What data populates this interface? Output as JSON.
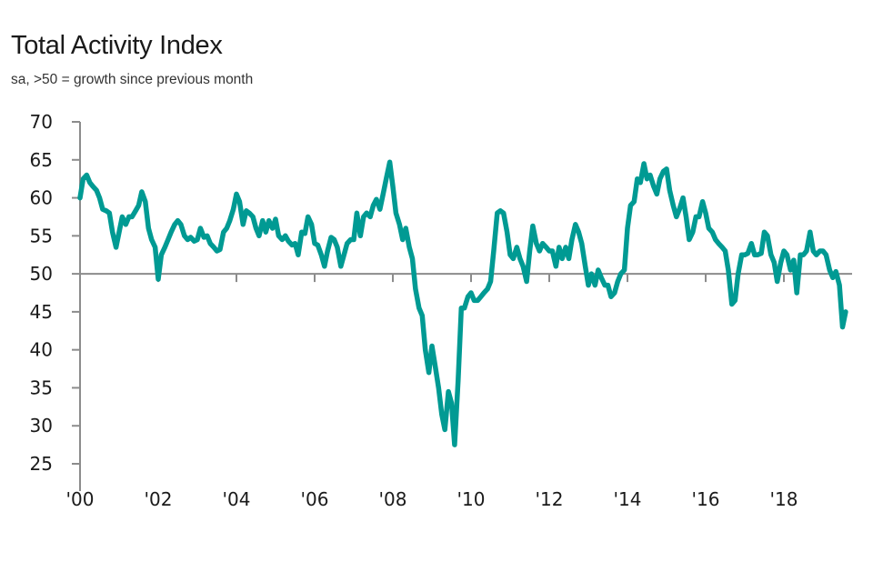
{
  "chart_data": {
    "type": "line",
    "title": "Total Activity Index",
    "subtitle": "sa, >50 = growth since previous month",
    "xlabel": "",
    "ylabel": "",
    "ylim": [
      25,
      70
    ],
    "xlim": [
      2000,
      2019.9
    ],
    "y_ticks": [
      70,
      65,
      60,
      55,
      50,
      45,
      40,
      35,
      30,
      25
    ],
    "x_ticks": [
      {
        "value": 2000,
        "label": "'00"
      },
      {
        "value": 2002,
        "label": "'02"
      },
      {
        "value": 2004,
        "label": "'04"
      },
      {
        "value": 2006,
        "label": "'06"
      },
      {
        "value": 2008,
        "label": "'08"
      },
      {
        "value": 2010,
        "label": "'10"
      },
      {
        "value": 2012,
        "label": "'12"
      },
      {
        "value": 2014,
        "label": "'14"
      },
      {
        "value": 2016,
        "label": "'16"
      },
      {
        "value": 2018,
        "label": "'18"
      }
    ],
    "reference_line": 50,
    "grid": false,
    "legend": "none",
    "series": [
      {
        "name": "Total Activity Index",
        "color": "#009A93",
        "x": [
          2000.0,
          2000.08,
          2000.17,
          2000.25,
          2000.33,
          2000.42,
          2000.5,
          2000.58,
          2000.67,
          2000.75,
          2000.83,
          2000.92,
          2001.0,
          2001.08,
          2001.17,
          2001.25,
          2001.33,
          2001.42,
          2001.5,
          2001.58,
          2001.67,
          2001.75,
          2001.83,
          2001.92,
          2002.0,
          2002.08,
          2002.17,
          2002.25,
          2002.33,
          2002.42,
          2002.5,
          2002.58,
          2002.67,
          2002.75,
          2002.83,
          2002.92,
          2003.0,
          2003.08,
          2003.17,
          2003.25,
          2003.33,
          2003.42,
          2003.5,
          2003.58,
          2003.67,
          2003.75,
          2003.83,
          2003.92,
          2004.0,
          2004.08,
          2004.17,
          2004.25,
          2004.33,
          2004.42,
          2004.5,
          2004.58,
          2004.67,
          2004.75,
          2004.83,
          2004.92,
          2005.0,
          2005.08,
          2005.17,
          2005.25,
          2005.33,
          2005.42,
          2005.5,
          2005.58,
          2005.67,
          2005.75,
          2005.83,
          2005.92,
          2006.0,
          2006.08,
          2006.17,
          2006.25,
          2006.33,
          2006.42,
          2006.5,
          2006.58,
          2006.67,
          2006.75,
          2006.83,
          2006.92,
          2007.0,
          2007.08,
          2007.17,
          2007.25,
          2007.33,
          2007.42,
          2007.5,
          2007.58,
          2007.67,
          2007.75,
          2007.83,
          2007.92,
          2008.0,
          2008.08,
          2008.17,
          2008.25,
          2008.33,
          2008.42,
          2008.5,
          2008.58,
          2008.67,
          2008.75,
          2008.83,
          2008.92,
          2009.0,
          2009.08,
          2009.17,
          2009.25,
          2009.33,
          2009.42,
          2009.5,
          2009.58,
          2009.67,
          2009.75,
          2009.83,
          2009.92,
          2010.0,
          2010.08,
          2010.17,
          2010.25,
          2010.33,
          2010.42,
          2010.5,
          2010.58,
          2010.67,
          2010.75,
          2010.83,
          2010.92,
          2011.0,
          2011.08,
          2011.17,
          2011.25,
          2011.33,
          2011.42,
          2011.5,
          2011.58,
          2011.67,
          2011.75,
          2011.83,
          2011.92,
          2012.0,
          2012.08,
          2012.17,
          2012.25,
          2012.33,
          2012.42,
          2012.5,
          2012.58,
          2012.67,
          2012.75,
          2012.83,
          2012.92,
          2013.0,
          2013.08,
          2013.17,
          2013.25,
          2013.33,
          2013.42,
          2013.5,
          2013.58,
          2013.67,
          2013.75,
          2013.83,
          2013.92,
          2014.0,
          2014.08,
          2014.17,
          2014.25,
          2014.33,
          2014.42,
          2014.5,
          2014.58,
          2014.67,
          2014.75,
          2014.83,
          2014.92,
          2015.0,
          2015.08,
          2015.17,
          2015.25,
          2015.33,
          2015.42,
          2015.5,
          2015.58,
          2015.67,
          2015.75,
          2015.83,
          2015.92,
          2016.0,
          2016.08,
          2016.17,
          2016.25,
          2016.33,
          2016.42,
          2016.5,
          2016.58,
          2016.67,
          2016.75,
          2016.83,
          2016.92,
          2017.0,
          2017.08,
          2017.17,
          2017.25,
          2017.33,
          2017.42,
          2017.5,
          2017.58,
          2017.67,
          2017.75,
          2017.83,
          2017.92,
          2018.0,
          2018.08,
          2018.17,
          2018.25,
          2018.33,
          2018.42,
          2018.5,
          2018.58,
          2018.67,
          2018.75,
          2018.83,
          2018.92,
          2019.0,
          2019.08,
          2019.17,
          2019.25,
          2019.33,
          2019.42,
          2019.5,
          2019.58
        ],
        "values": [
          60.0,
          62.5,
          63.0,
          62.0,
          61.5,
          61.0,
          60.0,
          58.5,
          58.3,
          58.0,
          55.5,
          53.5,
          55.5,
          57.5,
          56.5,
          57.5,
          57.5,
          58.3,
          59.0,
          60.8,
          59.5,
          56.0,
          54.5,
          53.5,
          49.3,
          52.5,
          53.5,
          54.5,
          55.5,
          56.5,
          57.0,
          56.5,
          55.0,
          54.5,
          54.8,
          54.3,
          54.5,
          56.0,
          54.8,
          55.0,
          54.0,
          53.5,
          53.0,
          53.2,
          55.5,
          56.0,
          57.0,
          58.5,
          60.5,
          59.5,
          56.5,
          58.3,
          58.0,
          57.5,
          56.0,
          55.0,
          57.0,
          55.5,
          57.0,
          56.0,
          57.2,
          55.0,
          54.5,
          55.0,
          54.3,
          53.8,
          54.0,
          52.5,
          55.5,
          55.3,
          57.5,
          56.5,
          54.0,
          53.8,
          52.5,
          51.0,
          53.0,
          54.8,
          54.5,
          53.5,
          51.0,
          52.5,
          54.0,
          54.5,
          54.5,
          58.0,
          55.0,
          57.5,
          58.0,
          57.5,
          59.0,
          59.8,
          58.5,
          60.5,
          62.5,
          64.7,
          61.5,
          58.0,
          56.5,
          54.5,
          56.0,
          53.5,
          52.0,
          48.0,
          45.5,
          44.5,
          40.0,
          37.0,
          40.5,
          38.0,
          35.0,
          31.5,
          29.5,
          34.5,
          33.0,
          27.5,
          36.0,
          45.5,
          45.5,
          47.0,
          47.5,
          46.5,
          46.5,
          47.0,
          47.5,
          48.0,
          49.0,
          53.0,
          58.0,
          58.3,
          58.0,
          55.5,
          52.5,
          52.0,
          53.5,
          52.0,
          51.0,
          49.0,
          53.0,
          56.3,
          54.0,
          53.0,
          54.0,
          53.5,
          53.0,
          53.0,
          51.0,
          53.5,
          52.0,
          53.5,
          52.0,
          54.5,
          56.5,
          55.5,
          54.0,
          51.0,
          48.5,
          50.0,
          48.5,
          50.5,
          49.5,
          48.5,
          48.5,
          47.0,
          47.5,
          49.0,
          50.0,
          50.5,
          56.0,
          59.0,
          59.5,
          62.5,
          62.0,
          64.5,
          62.5,
          63.0,
          61.5,
          60.5,
          62.5,
          63.5,
          63.8,
          61.0,
          59.0,
          57.5,
          58.5,
          60.0,
          57.5,
          54.5,
          55.5,
          57.5,
          57.5,
          59.5,
          58.0,
          56.0,
          55.5,
          54.5,
          54.0,
          53.5,
          53.0,
          50.5,
          46.0,
          46.5,
          50.0,
          52.5,
          52.5,
          52.7,
          54.0,
          52.5,
          52.5,
          52.7,
          55.5,
          55.0,
          52.5,
          51.5,
          49.0,
          51.5,
          53.0,
          52.5,
          50.5,
          51.8,
          47.5,
          52.5,
          52.5,
          53.0,
          55.5,
          53.0,
          52.5,
          53.0,
          53.0,
          52.5,
          50.5,
          49.5,
          50.3,
          48.5,
          43.0,
          45.0
        ]
      }
    ]
  }
}
